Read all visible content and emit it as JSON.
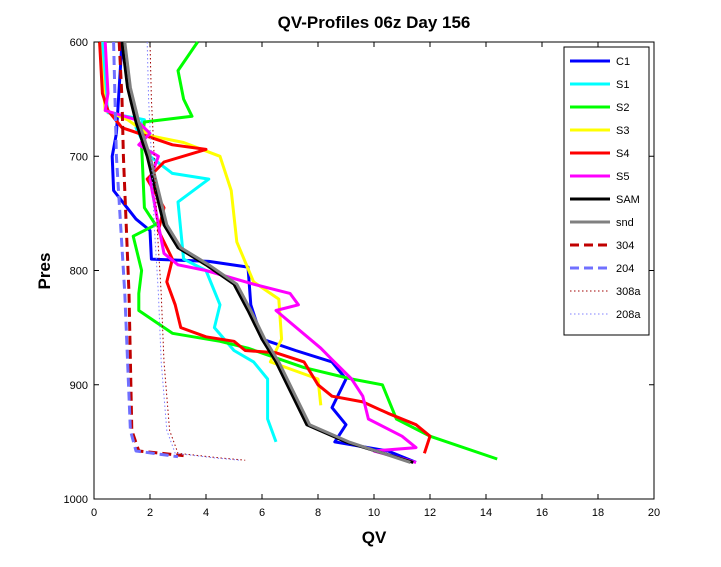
{
  "chart_data": {
    "type": "line",
    "title": "QV-Profiles 06z Day 156",
    "xlabel": "QV",
    "ylabel": "Pres",
    "xlim": [
      0,
      20
    ],
    "ylim": [
      600,
      1000
    ],
    "y_reversed": true,
    "x_ticks": [
      0,
      2,
      4,
      6,
      8,
      10,
      12,
      14,
      16,
      18,
      20
    ],
    "y_ticks": [
      600,
      700,
      800,
      900,
      1000
    ],
    "grid": false,
    "legend_position": "top-right",
    "series": [
      {
        "name": "C1",
        "color": "#0000ff",
        "dash": "solid",
        "width": 3,
        "points": [
          [
            1,
            600
          ],
          [
            0.9,
            640
          ],
          [
            0.8,
            680
          ],
          [
            0.65,
            700
          ],
          [
            0.7,
            730
          ],
          [
            1.5,
            755
          ],
          [
            2.0,
            765
          ],
          [
            2.05,
            790
          ],
          [
            4.1,
            792
          ],
          [
            5.5,
            797
          ],
          [
            5.6,
            830
          ],
          [
            6.0,
            860
          ],
          [
            7.2,
            870
          ],
          [
            8.5,
            880
          ],
          [
            9.0,
            895
          ],
          [
            8.5,
            920
          ],
          [
            9.0,
            935
          ],
          [
            8.6,
            950
          ],
          [
            10.5,
            958
          ],
          [
            11.5,
            968
          ]
        ]
      },
      {
        "name": "S1",
        "color": "#00ffff",
        "dash": "solid",
        "width": 3,
        "points": [
          [
            0.3,
            600
          ],
          [
            0.4,
            640
          ],
          [
            0.5,
            662
          ],
          [
            1.8,
            668
          ],
          [
            1.5,
            675
          ],
          [
            2.0,
            700
          ],
          [
            2.8,
            715
          ],
          [
            4.1,
            720
          ],
          [
            3.0,
            740
          ],
          [
            3.2,
            790
          ],
          [
            4.0,
            800
          ],
          [
            4.5,
            830
          ],
          [
            4.3,
            850
          ],
          [
            5.0,
            870
          ],
          [
            5.7,
            880
          ],
          [
            6.2,
            895
          ],
          [
            6.2,
            930
          ],
          [
            6.5,
            950
          ]
        ]
      },
      {
        "name": "S2",
        "color": "#00ff00",
        "dash": "solid",
        "width": 3,
        "points": [
          [
            3.7,
            600
          ],
          [
            3.0,
            625
          ],
          [
            3.2,
            650
          ],
          [
            3.5,
            665
          ],
          [
            1.8,
            670
          ],
          [
            1.7,
            690
          ],
          [
            1.8,
            745
          ],
          [
            2.2,
            760
          ],
          [
            1.4,
            770
          ],
          [
            1.7,
            800
          ],
          [
            1.6,
            820
          ],
          [
            1.6,
            835
          ],
          [
            2.8,
            855
          ],
          [
            4.5,
            862
          ],
          [
            5.5,
            868
          ],
          [
            7.5,
            885
          ],
          [
            9.2,
            895
          ],
          [
            10.3,
            900
          ],
          [
            10.8,
            930
          ],
          [
            12.0,
            945
          ],
          [
            14.4,
            965
          ]
        ]
      },
      {
        "name": "S3",
        "color": "#ffff00",
        "dash": "solid",
        "width": 3,
        "points": [
          [
            0.2,
            600
          ],
          [
            0.4,
            660
          ],
          [
            1.2,
            668
          ],
          [
            2.0,
            682
          ],
          [
            3.2,
            688
          ],
          [
            4.5,
            700
          ],
          [
            4.9,
            730
          ],
          [
            5.1,
            775
          ],
          [
            5.7,
            810
          ],
          [
            6.6,
            825
          ],
          [
            6.7,
            860
          ],
          [
            6.3,
            880
          ],
          [
            8.0,
            895
          ],
          [
            8.1,
            918
          ]
        ]
      },
      {
        "name": "S4",
        "color": "#ff0000",
        "dash": "solid",
        "width": 3,
        "points": [
          [
            0.2,
            600
          ],
          [
            0.3,
            645
          ],
          [
            0.5,
            660
          ],
          [
            1.0,
            675
          ],
          [
            2.8,
            690
          ],
          [
            4.0,
            694
          ],
          [
            2.5,
            705
          ],
          [
            1.9,
            720
          ],
          [
            2.5,
            745
          ],
          [
            2.3,
            765
          ],
          [
            2.8,
            790
          ],
          [
            2.6,
            810
          ],
          [
            2.9,
            830
          ],
          [
            3.1,
            850
          ],
          [
            4.0,
            858
          ],
          [
            5.0,
            862
          ],
          [
            5.4,
            870
          ],
          [
            6.5,
            872
          ],
          [
            7.5,
            880
          ],
          [
            8.0,
            900
          ],
          [
            8.5,
            910
          ],
          [
            9.6,
            915
          ],
          [
            10.5,
            925
          ],
          [
            11.5,
            935
          ],
          [
            12.0,
            945
          ],
          [
            11.8,
            960
          ]
        ]
      },
      {
        "name": "S5",
        "color": "#ff00ff",
        "dash": "solid",
        "width": 3,
        "points": [
          [
            0.4,
            600
          ],
          [
            0.5,
            645
          ],
          [
            0.4,
            660
          ],
          [
            1.5,
            668
          ],
          [
            2.0,
            680
          ],
          [
            1.6,
            690
          ],
          [
            2.3,
            700
          ],
          [
            2.0,
            720
          ],
          [
            2.3,
            760
          ],
          [
            2.5,
            785
          ],
          [
            3.0,
            795
          ],
          [
            4.0,
            800
          ],
          [
            5.7,
            812
          ],
          [
            7.0,
            820
          ],
          [
            7.3,
            830
          ],
          [
            6.5,
            835
          ],
          [
            8.1,
            868
          ],
          [
            8.5,
            878
          ],
          [
            9.2,
            895
          ],
          [
            9.6,
            910
          ],
          [
            9.8,
            930
          ],
          [
            11.0,
            945
          ],
          [
            11.5,
            955
          ],
          [
            10.0,
            958
          ],
          [
            11.5,
            968
          ]
        ]
      },
      {
        "name": "SAM",
        "color": "#000000",
        "dash": "solid",
        "width": 3,
        "points": [
          [
            1.0,
            600
          ],
          [
            1.2,
            640
          ],
          [
            1.5,
            670
          ],
          [
            1.9,
            700
          ],
          [
            2.2,
            730
          ],
          [
            2.5,
            760
          ],
          [
            3.0,
            780
          ],
          [
            4.0,
            795
          ],
          [
            5.0,
            812
          ],
          [
            5.5,
            835
          ],
          [
            6.0,
            860
          ],
          [
            6.5,
            880
          ],
          [
            7.0,
            905
          ],
          [
            7.6,
            935
          ],
          [
            9.0,
            950
          ],
          [
            11.4,
            968
          ]
        ]
      },
      {
        "name": "snd",
        "color": "#808080",
        "dash": "solid",
        "width": 3,
        "points": [
          [
            1.1,
            600
          ],
          [
            1.3,
            640
          ],
          [
            1.6,
            670
          ],
          [
            2.0,
            700
          ],
          [
            2.3,
            730
          ],
          [
            2.6,
            760
          ],
          [
            3.1,
            780
          ],
          [
            4.1,
            795
          ],
          [
            5.1,
            812
          ],
          [
            5.6,
            835
          ],
          [
            6.1,
            860
          ],
          [
            6.6,
            880
          ],
          [
            7.1,
            905
          ],
          [
            7.7,
            935
          ],
          [
            9.1,
            950
          ],
          [
            11.3,
            968
          ]
        ]
      },
      {
        "name": "304",
        "color": "#c00000",
        "dash": "dashed",
        "width": 3,
        "points": [
          [
            0.9,
            600
          ],
          [
            1.0,
            650
          ],
          [
            1.05,
            700
          ],
          [
            1.15,
            760
          ],
          [
            1.25,
            820
          ],
          [
            1.3,
            880
          ],
          [
            1.35,
            940
          ],
          [
            1.6,
            958
          ],
          [
            3.2,
            962
          ]
        ]
      },
      {
        "name": "204",
        "color": "#7070ff",
        "dash": "dashed",
        "width": 3,
        "points": [
          [
            0.7,
            600
          ],
          [
            0.75,
            650
          ],
          [
            0.8,
            700
          ],
          [
            0.95,
            760
          ],
          [
            1.1,
            820
          ],
          [
            1.2,
            880
          ],
          [
            1.3,
            940
          ],
          [
            1.5,
            958
          ],
          [
            3.0,
            963
          ]
        ]
      },
      {
        "name": "308a",
        "color": "#a00000",
        "dash": "dotted",
        "width": 1,
        "points": [
          [
            2.0,
            600
          ],
          [
            2.05,
            650
          ],
          [
            2.15,
            700
          ],
          [
            2.25,
            760
          ],
          [
            2.4,
            820
          ],
          [
            2.5,
            880
          ],
          [
            2.7,
            940
          ],
          [
            3.0,
            960
          ],
          [
            4.5,
            964
          ],
          [
            5.4,
            966
          ]
        ]
      },
      {
        "name": "208a",
        "color": "#8080ff",
        "dash": "dotted",
        "width": 1,
        "points": [
          [
            1.9,
            600
          ],
          [
            1.95,
            650
          ],
          [
            2.05,
            700
          ],
          [
            2.15,
            760
          ],
          [
            2.3,
            820
          ],
          [
            2.4,
            880
          ],
          [
            2.6,
            940
          ],
          [
            2.9,
            960
          ],
          [
            4.3,
            964
          ],
          [
            5.2,
            966
          ]
        ]
      }
    ]
  }
}
